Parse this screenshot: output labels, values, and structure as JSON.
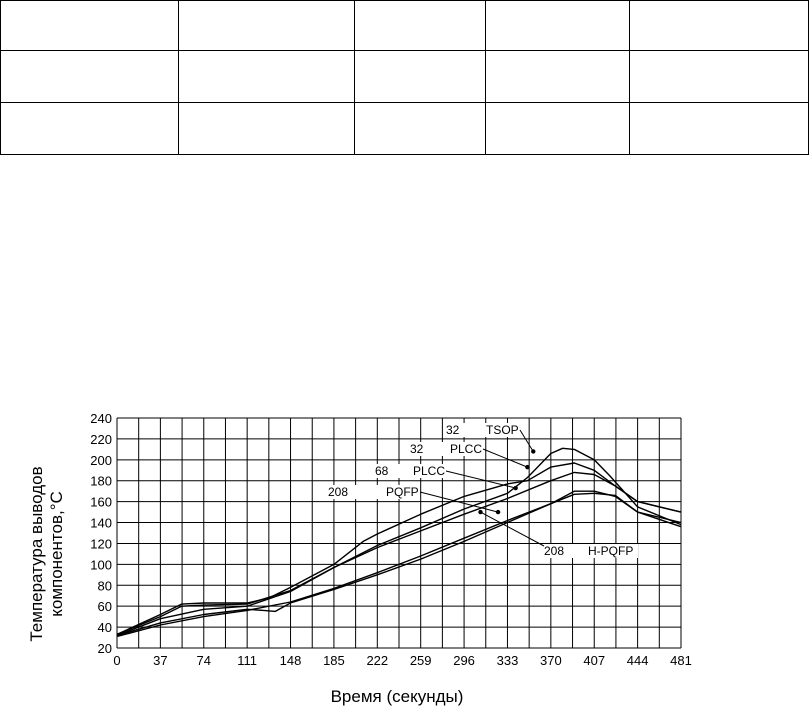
{
  "table": {
    "rows": [
      [
        "",
        "",
        "",
        "",
        ""
      ],
      [
        "",
        "",
        "",
        "",
        ""
      ],
      [
        "",
        "",
        "",
        "",
        ""
      ]
    ]
  },
  "chart_data": {
    "type": "line",
    "xlabel": "Время (секунды)",
    "ylabel_lines": [
      "Температура выводов",
      "компонентов,°С"
    ],
    "xlim": [
      0,
      481
    ],
    "ylim": [
      20,
      240
    ],
    "x_ticks": [
      0,
      37,
      74,
      111,
      148,
      185,
      222,
      259,
      296,
      333,
      370,
      407,
      444,
      481
    ],
    "y_ticks": [
      20,
      40,
      60,
      80,
      100,
      120,
      140,
      160,
      180,
      200,
      220,
      240
    ],
    "grid": true,
    "series": [
      {
        "name": "32 TSOP",
        "x": [
          0,
          37,
          55,
          74,
          111,
          148,
          185,
          222,
          259,
          296,
          333,
          350,
          370,
          380,
          390,
          407,
          420,
          444,
          481
        ],
        "y": [
          33,
          50,
          60,
          61,
          62,
          75,
          97,
          118,
          135,
          153,
          168,
          183,
          206,
          211,
          210,
          200,
          185,
          155,
          138
        ]
      },
      {
        "name": "32 PLCC",
        "x": [
          0,
          37,
          55,
          74,
          111,
          130,
          148,
          185,
          210,
          222,
          259,
          296,
          333,
          350,
          370,
          390,
          407,
          425,
          444,
          481
        ],
        "y": [
          33,
          52,
          62,
          63,
          63,
          68,
          78,
          100,
          122,
          129,
          148,
          165,
          177,
          180,
          193,
          197,
          190,
          175,
          160,
          150
        ]
      },
      {
        "name": "68 PLCC",
        "x": [
          0,
          37,
          74,
          111,
          148,
          185,
          222,
          259,
          296,
          333,
          370,
          390,
          407,
          425,
          444,
          481
        ],
        "y": [
          32,
          48,
          57,
          60,
          74,
          97,
          116,
          132,
          148,
          163,
          180,
          188,
          186,
          175,
          160,
          150
        ]
      },
      {
        "name": "208 PQFP",
        "x": [
          0,
          37,
          74,
          111,
          125,
          135,
          148,
          185,
          222,
          259,
          296,
          333,
          370,
          390,
          407,
          425,
          444,
          481
        ],
        "y": [
          32,
          44,
          52,
          57,
          56,
          55,
          63,
          76,
          90,
          105,
          122,
          140,
          158,
          170,
          170,
          165,
          150,
          136
        ]
      },
      {
        "name": "208 H-PQFP",
        "x": [
          0,
          37,
          74,
          111,
          148,
          185,
          222,
          259,
          296,
          333,
          370,
          390,
          407,
          425,
          444,
          481
        ],
        "y": [
          31,
          42,
          50,
          56,
          64,
          77,
          92,
          108,
          125,
          142,
          158,
          167,
          168,
          166,
          150,
          140
        ]
      }
    ],
    "annotations": [
      {
        "num": "32",
        "label": "TSOP",
        "target_x": 355,
        "target_y": 208
      },
      {
        "num": "32",
        "label": "PLCC",
        "target_x": 350,
        "target_y": 193
      },
      {
        "num": "68",
        "label": "PLCC",
        "target_x": 340,
        "target_y": 173
      },
      {
        "num": "208",
        "label": "PQFP",
        "target_x": 325,
        "target_y": 150
      },
      {
        "num": "208",
        "label": "H-PQFP",
        "target_x": 310,
        "target_y": 150
      }
    ]
  }
}
